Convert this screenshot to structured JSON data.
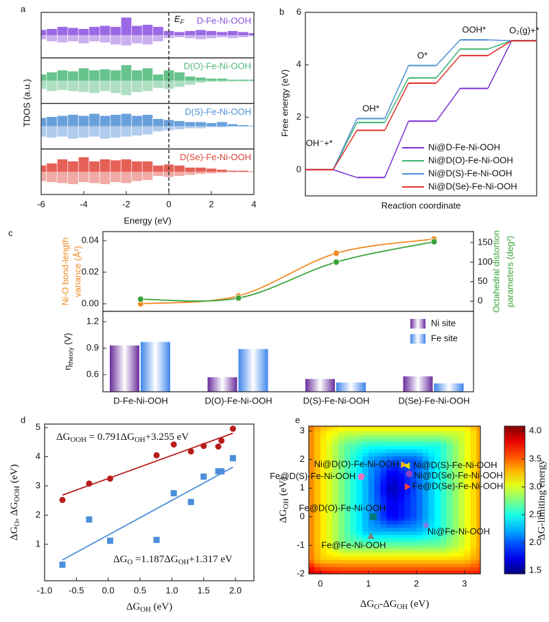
{
  "chart_data": [
    {
      "panel": "a",
      "type": "area",
      "xlabel": "Energy (eV)",
      "ylabel": "TDOS (a.u.)",
      "fermi_label": [
        "E",
        "F"
      ],
      "fermi_level": 0,
      "x": [
        -6,
        -5.5,
        -5,
        -4.5,
        -4,
        -3.5,
        -3,
        -2.5,
        -2,
        -1.5,
        -1,
        -0.5,
        0,
        0.5,
        1,
        1.5,
        2,
        2.5,
        3,
        3.5,
        4
      ],
      "xlim": [
        -6,
        4
      ],
      "xticks": [
        -6,
        -4,
        -2,
        0,
        2,
        4
      ],
      "ylim": [
        -1,
        1
      ],
      "series": [
        {
          "name": "D-Fe-Ni-OOH",
          "color": "#8a4fe0",
          "values": [
            0.25,
            0.3,
            0.4,
            0.35,
            0.3,
            0.4,
            0.45,
            0.4,
            0.85,
            0.45,
            0.5,
            0.4,
            0.2,
            0.15,
            0.2,
            0.25,
            0.2,
            0.15,
            0.2,
            0.15,
            0.1
          ],
          "values_down": [
            -0.2,
            -0.3,
            -0.35,
            -0.3,
            -0.4,
            -0.3,
            -0.35,
            -0.45,
            -0.5,
            -0.4,
            -0.45,
            -0.3,
            -0.15,
            -0.1,
            -0.15,
            -0.2,
            -0.15,
            -0.1,
            -0.15,
            -0.1,
            -0.05
          ]
        },
        {
          "name": "D(O)-Fe-Ni-OOH",
          "color": "#4cb878",
          "values": [
            0.3,
            0.4,
            0.5,
            0.45,
            0.6,
            0.5,
            0.55,
            0.5,
            0.75,
            0.5,
            0.6,
            0.3,
            0.5,
            0.4,
            0.2,
            0.15,
            0.1,
            0.1,
            0.05,
            0.05,
            0.05
          ],
          "values_down": [
            -0.4,
            -0.5,
            -0.45,
            -0.5,
            -0.55,
            -0.6,
            -0.5,
            -0.6,
            -0.7,
            -0.55,
            -0.5,
            -0.35,
            -0.4,
            -0.3,
            -0.2,
            -0.1,
            -0.05,
            -0.05,
            -0.03,
            -0.03,
            -0.03
          ]
        },
        {
          "name": "D(S)-Fe-Ni-OOH",
          "color": "#4f8fd6",
          "values": [
            0.4,
            0.45,
            0.5,
            0.55,
            0.5,
            0.6,
            0.5,
            0.55,
            0.6,
            0.5,
            0.55,
            0.35,
            0.3,
            0.25,
            0.2,
            0.2,
            0.15,
            0.2,
            0.1,
            0.05,
            0.02
          ],
          "values_down": [
            -0.5,
            -0.55,
            -0.5,
            -0.6,
            -0.55,
            -0.5,
            -0.6,
            -0.55,
            -0.5,
            -0.45,
            -0.4,
            -0.25,
            -0.2,
            -0.15,
            -0.1,
            -0.1,
            -0.05,
            -0.05,
            -0.02,
            -0.02,
            -0.02
          ]
        },
        {
          "name": "D(Se)-Fe-Ni-OOH",
          "color": "#e0443a",
          "values": [
            0.3,
            0.4,
            0.6,
            0.5,
            0.7,
            0.5,
            0.6,
            0.55,
            0.6,
            0.5,
            0.5,
            0.3,
            0.35,
            0.3,
            0.2,
            0.2,
            0.15,
            0.1,
            0.05,
            0.05,
            0.02
          ],
          "values_down": [
            -0.45,
            -0.5,
            -0.55,
            -0.6,
            -0.5,
            -0.55,
            -0.6,
            -0.5,
            -0.55,
            -0.45,
            -0.4,
            -0.2,
            -0.25,
            -0.2,
            -0.15,
            -0.1,
            -0.08,
            -0.05,
            -0.02,
            -0.02,
            -0.02
          ]
        }
      ]
    },
    {
      "panel": "b",
      "type": "step",
      "xlabel": "Reaction coordinate",
      "ylabel": "Free energy (eV)",
      "categories": [
        "OH⁻+*",
        "OH*",
        "O*",
        "OOH*",
        "O₂(g)+*"
      ],
      "ylim": [
        -1,
        6
      ],
      "yticks": [
        0,
        2,
        4,
        6
      ],
      "legend": "lower right",
      "series": [
        {
          "name": "Ni@D-Fe-Ni-OOH",
          "color": "#7a2fd6",
          "values": [
            0,
            -0.3,
            1.85,
            3.1,
            4.92
          ]
        },
        {
          "name": "Ni@D(O)-Fe-Ni-OOH",
          "color": "#3cb371",
          "values": [
            0,
            1.8,
            3.5,
            4.6,
            4.92
          ]
        },
        {
          "name": "Ni@D(S)-Fe-Ni-OOH",
          "color": "#4f8fd6",
          "values": [
            0,
            1.95,
            3.97,
            4.95,
            4.92
          ]
        },
        {
          "name": "Ni@D(Se)-Fe-Ni-OOH",
          "color": "#e0302a",
          "values": [
            0,
            1.5,
            3.3,
            4.35,
            4.92
          ]
        }
      ]
    },
    {
      "panel": "c",
      "type": "line",
      "ylabel": [
        "Ni-O bond-length",
        "variance (Å²)"
      ],
      "y2label": [
        "Octahedral distortion",
        "parameters (deg²)"
      ],
      "ylim": [
        -0.0048,
        0.0457
      ],
      "yticks": [
        {
          "value": 0,
          "label": "0.00"
        },
        0.02,
        0.04
      ],
      "y2lim": [
        -26,
        178
      ],
      "y2ticks": [
        0,
        50,
        100,
        150
      ],
      "series": [
        {
          "color": "#f08a24",
          "values": [
            0.0,
            0.005,
            0.032,
            0.041
          ]
        },
        {
          "color": "#3aa33a",
          "axis": "y2",
          "values": [
            5,
            8,
            100,
            152
          ]
        }
      ]
    },
    {
      "type": "bar",
      "ylabel": [
        "η",
        "theory",
        " (V)"
      ],
      "categories": [
        "D-Fe-Ni-OOH",
        "D(O)-Fe-Ni-OOH",
        "D(S)-Fe-Ni-OOH",
        "D(Se)-Fe-Ni-OOH"
      ],
      "ylim": [
        0.405,
        1.317
      ],
      "yticks": [
        0.6,
        0.9,
        1.2
      ],
      "legend": "upper right",
      "series": [
        {
          "name": "Ni site",
          "color": "#6a2c9e",
          "values": [
            0.93,
            0.57,
            0.55,
            0.58
          ]
        },
        {
          "name": "Fe site",
          "color": "#3f86ee",
          "values": [
            0.97,
            0.89,
            0.51,
            0.5
          ]
        }
      ]
    },
    {
      "panel": "d",
      "type": "scatter",
      "xlabel": [
        "ΔG",
        "OH",
        " (eV)"
      ],
      "ylabel": [
        "ΔG",
        "O",
        ", ΔG",
        "OOH",
        " (eV)"
      ],
      "xlim": [
        -1.0,
        2.29
      ],
      "xticks": [
        {
          "value": -1,
          "label": "-1.0"
        },
        -0.5,
        {
          "value": 0,
          "label": "0.0"
        },
        0.5,
        {
          "value": 1,
          "label": "1.0"
        },
        1.5,
        {
          "value": 2,
          "label": "2.0"
        }
      ],
      "ylim": [
        -0.25,
        5.12
      ],
      "yticks": [
        1,
        2,
        3,
        4,
        5
      ],
      "x": [
        -0.72,
        -0.3,
        0.03,
        0.76,
        1.03,
        1.3,
        1.5,
        1.73,
        1.78,
        1.96
      ],
      "series": [
        {
          "color": "#b81c1c",
          "marker": "circle",
          "values": [
            2.52,
            3.08,
            3.25,
            4.05,
            4.42,
            4.18,
            4.37,
            4.35,
            4.55,
            4.96
          ],
          "fit": {
            "slope": 0.791,
            "intercept": 3.255
          },
          "label": [
            "ΔG",
            "OOH",
            " = 0.791ΔG",
            "OH",
            "+3.255 eV"
          ]
        },
        {
          "color": "#4b8fdb",
          "marker": "square",
          "values": [
            0.3,
            1.85,
            1.12,
            1.15,
            2.75,
            2.45,
            3.32,
            3.5,
            3.5,
            3.95
          ],
          "fit": {
            "slope": 1.187,
            "intercept": 1.317
          },
          "label": [
            "ΔG",
            "O",
            " =1.187ΔG",
            "OH",
            "+1.317 eV"
          ]
        }
      ]
    },
    {
      "panel": "e",
      "type": "heatmap",
      "xlabel": [
        "ΔG",
        "O",
        "-ΔG",
        "OH",
        " (eV)"
      ],
      "ylabel": [
        "ΔG",
        "OH",
        " (eV)"
      ],
      "xlim": [
        -0.24,
        3.33
      ],
      "xticks": [
        0,
        1,
        2,
        3
      ],
      "ylim": [
        -2,
        3.17
      ],
      "yticks": [
        -2,
        -1,
        0,
        1,
        2,
        3
      ],
      "x": [
        -0.5,
        0,
        0.5,
        1,
        1.5,
        2,
        2.5,
        3,
        3.5
      ],
      "y": [
        -2,
        -1.5,
        -1,
        -0.5,
        0,
        0.5,
        1,
        1.5,
        2,
        2.5,
        3,
        3.5
      ],
      "z": [
        [
          4.15,
          3.8,
          3.72,
          3.72,
          3.72,
          3.72,
          3.72,
          3.72,
          3.72
        ],
        [
          3.8,
          3.22,
          3.22,
          3.22,
          3.22,
          3.22,
          3.22,
          3.22,
          3.5
        ],
        [
          3.7,
          3.2,
          2.72,
          2.72,
          2.72,
          2.72,
          2.72,
          3.0,
          3.5
        ],
        [
          3.7,
          3.2,
          2.7,
          2.22,
          2.22,
          2.22,
          2.5,
          3.0,
          3.5
        ],
        [
          3.7,
          3.2,
          2.7,
          2.2,
          1.72,
          2.0,
          2.5,
          3.0,
          3.5
        ],
        [
          3.7,
          3.2,
          2.7,
          2.2,
          1.7,
          2.0,
          2.5,
          3.0,
          3.5
        ],
        [
          3.7,
          3.2,
          2.7,
          2.2,
          1.55,
          2.0,
          2.5,
          3.0,
          3.5
        ],
        [
          3.7,
          3.2,
          2.7,
          2.2,
          1.7,
          2.0,
          2.5,
          3.0,
          3.5
        ],
        [
          3.7,
          3.2,
          2.7,
          2.2,
          2.0,
          2.0,
          2.5,
          3.0,
          3.5
        ],
        [
          3.7,
          3.2,
          2.7,
          2.5,
          2.5,
          2.5,
          2.5,
          3.0,
          3.5
        ],
        [
          3.7,
          3.2,
          3.0,
          3.0,
          3.0,
          3.0,
          3.0,
          3.0,
          3.5
        ],
        [
          3.7,
          3.5,
          3.5,
          3.5,
          3.5,
          3.5,
          3.5,
          3.5,
          3.5
        ]
      ],
      "zlim": [
        1.44,
        4.09
      ],
      "colorbar_ticks": [
        1.5,
        {
          "value": 2,
          "label": "2.0"
        },
        2.5,
        {
          "value": 3,
          "label": "3.0"
        },
        3.5,
        {
          "value": 4,
          "label": "4.0"
        }
      ],
      "colorbar_label": "ΔG-limiting energy",
      "points": [
        {
          "name": "Ni@D(O)-Fe-Ni-OOH",
          "x": 1.72,
          "y": 1.82,
          "color": "#f0b020",
          "marker": "triangle-right"
        },
        {
          "name": "Ni@D(S)-Fe-Ni-OOH",
          "x": 1.82,
          "y": 1.78,
          "color": "#e8e000",
          "marker": "triangle-left"
        },
        {
          "name": "Ni@D(Se)-Fe-Ni-OOH",
          "x": 1.85,
          "y": 1.5,
          "color": "#8e3fbf",
          "marker": "circle"
        },
        {
          "name": "Fe@D(S)-Fe-Ni-OOH",
          "x": 0.85,
          "y": 1.4,
          "color": "#f070c0",
          "marker": "pentagon"
        },
        {
          "name": "Fe@D(Se)-Fe-Ni-OOH",
          "x": 1.8,
          "y": 1.05,
          "color": "#f04040",
          "marker": "triangle-right"
        },
        {
          "name": "Fe@D(O)-Fe-Ni-OOH",
          "x": 1.1,
          "y": 0.0,
          "color": "#007a7a",
          "marker": "square"
        },
        {
          "name": "Ni@Fe-Ni-OOH",
          "x": 2.2,
          "y": -0.3,
          "color": "#9070e0",
          "marker": "star"
        },
        {
          "name": "Fe@Fe-Ni-OOH",
          "x": 1.05,
          "y": -0.7,
          "color": "#808080",
          "marker": "triangle-up"
        }
      ]
    }
  ]
}
